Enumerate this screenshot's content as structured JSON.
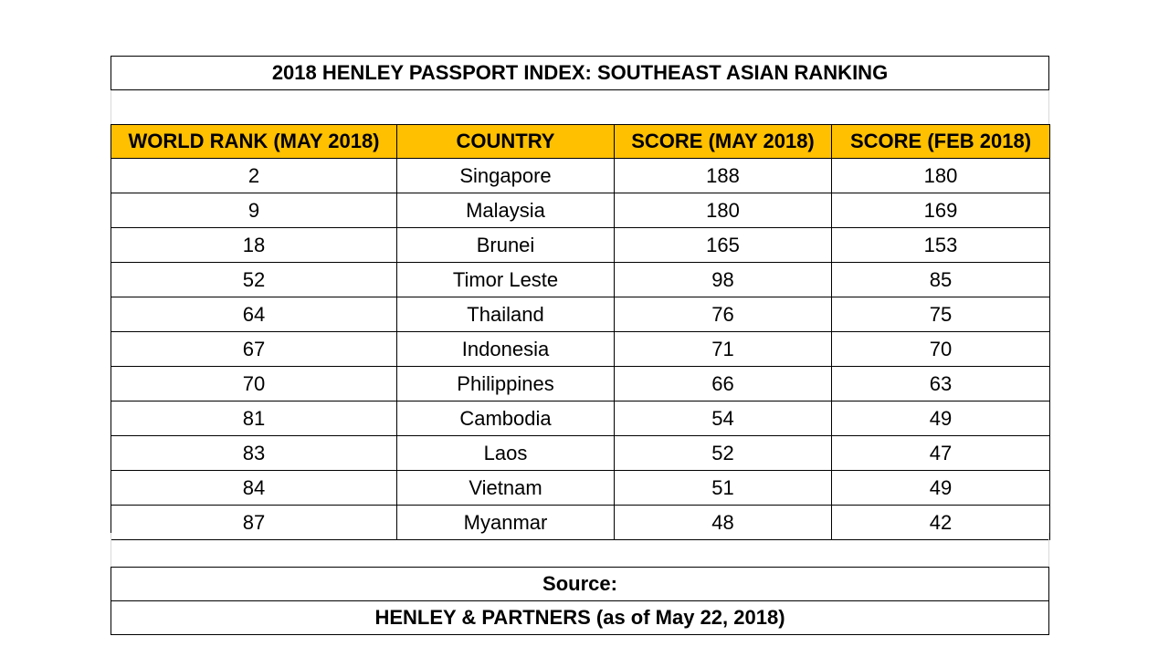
{
  "title": "2018 HENLEY PASSPORT INDEX: SOUTHEAST ASIAN RANKING",
  "headers": [
    "WORLD RANK (MAY 2018)",
    "COUNTRY",
    "SCORE (MAY 2018)",
    "SCORE (FEB 2018)"
  ],
  "rows": [
    [
      "2",
      "Singapore",
      "188",
      "180"
    ],
    [
      "9",
      "Malaysia",
      "180",
      "169"
    ],
    [
      "18",
      "Brunei",
      "165",
      "153"
    ],
    [
      "52",
      "Timor Leste",
      "98",
      "85"
    ],
    [
      "64",
      "Thailand",
      "76",
      "75"
    ],
    [
      "67",
      "Indonesia",
      "71",
      "70"
    ],
    [
      "70",
      "Philippines",
      "66",
      "63"
    ],
    [
      "81",
      "Cambodia",
      "54",
      "49"
    ],
    [
      "83",
      "Laos",
      "52",
      "47"
    ],
    [
      "84",
      "Vietnam",
      "51",
      "49"
    ],
    [
      "87",
      "Myanmar",
      "48",
      "42"
    ]
  ],
  "source": {
    "label": "Source:",
    "value": "HENLEY & PARTNERS (as of May 22, 2018)"
  },
  "colors": {
    "header_fill": "#ffc000",
    "border": "#000000"
  }
}
